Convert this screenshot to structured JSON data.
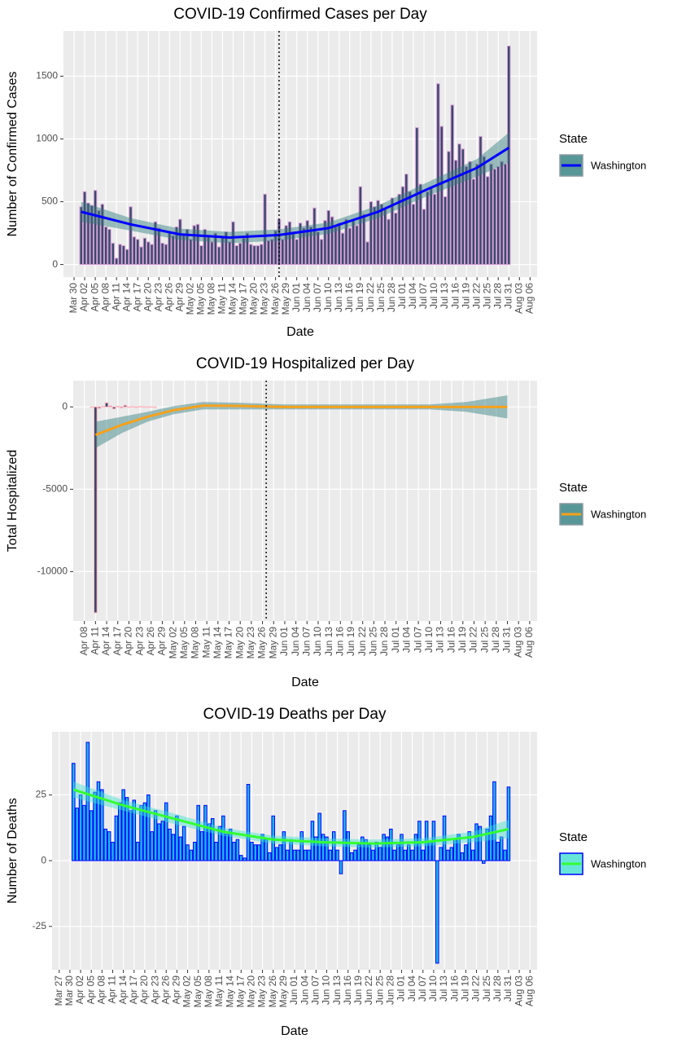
{
  "chart_data": [
    {
      "type": "bar",
      "title": "COVID-19 Confirmed Cases per Day",
      "x_label": "Date",
      "y_label": "Number of Confirmed Cases",
      "legend_title": "State",
      "x": [
        "Apr 01",
        "Apr 02",
        "Apr 03",
        "Apr 04",
        "Apr 05",
        "Apr 06",
        "Apr 07",
        "Apr 08",
        "Apr 09",
        "Apr 10",
        "Apr 11",
        "Apr 12",
        "Apr 13",
        "Apr 14",
        "Apr 15",
        "Apr 16",
        "Apr 17",
        "Apr 18",
        "Apr 19",
        "Apr 20",
        "Apr 21",
        "Apr 22",
        "Apr 23",
        "Apr 24",
        "Apr 25",
        "Apr 26",
        "Apr 27",
        "Apr 28",
        "Apr 29",
        "Apr 30",
        "May 01",
        "May 02",
        "May 03",
        "May 04",
        "May 05",
        "May 06",
        "May 07",
        "May 08",
        "May 09",
        "May 10",
        "May 11",
        "May 12",
        "May 13",
        "May 14",
        "May 15",
        "May 16",
        "May 17",
        "May 18",
        "May 19",
        "May 20",
        "May 21",
        "May 22",
        "May 23",
        "May 24",
        "May 25",
        "May 26",
        "May 27",
        "May 28",
        "May 29",
        "May 30",
        "May 31",
        "Jun 01",
        "Jun 02",
        "Jun 03",
        "Jun 04",
        "Jun 05",
        "Jun 06",
        "Jun 07",
        "Jun 08",
        "Jun 09",
        "Jun 10",
        "Jun 11",
        "Jun 12",
        "Jun 13",
        "Jun 14",
        "Jun 15",
        "Jun 16",
        "Jun 17",
        "Jun 18",
        "Jun 19",
        "Jun 20",
        "Jun 21",
        "Jun 22",
        "Jun 23",
        "Jun 24",
        "Jun 25",
        "Jun 26",
        "Jun 27",
        "Jun 28",
        "Jun 29",
        "Jun 30",
        "Jul 01",
        "Jul 02",
        "Jul 03",
        "Jul 04",
        "Jul 05",
        "Jul 06",
        "Jul 07",
        "Jul 08",
        "Jul 09",
        "Jul 10",
        "Jul 11",
        "Jul 12",
        "Jul 13",
        "Jul 14",
        "Jul 15",
        "Jul 16",
        "Jul 17",
        "Jul 18",
        "Jul 19",
        "Jul 20",
        "Jul 21",
        "Jul 22",
        "Jul 23",
        "Jul 24",
        "Jul 25",
        "Jul 26",
        "Jul 27",
        "Jul 28",
        "Jul 29",
        "Jul 30",
        "Jul 31"
      ],
      "series": [
        {
          "name": "Washington",
          "color": "#3b4a6b",
          "edge_color": "#d9a0d9",
          "values": [
            460,
            580,
            490,
            470,
            590,
            430,
            480,
            300,
            280,
            170,
            50,
            160,
            150,
            120,
            460,
            220,
            200,
            140,
            210,
            180,
            160,
            340,
            290,
            170,
            160,
            250,
            230,
            300,
            360,
            240,
            280,
            200,
            310,
            320,
            150,
            280,
            230,
            180,
            250,
            140,
            220,
            260,
            180,
            340,
            150,
            170,
            210,
            250,
            160,
            150,
            150,
            160,
            560,
            190,
            200,
            270,
            360,
            200,
            310,
            340,
            260,
            200,
            330,
            290,
            350,
            300,
            450,
            260,
            200,
            350,
            430,
            380,
            300,
            330,
            250,
            360,
            290,
            350,
            310,
            620,
            400,
            180,
            500,
            460,
            510,
            480,
            440,
            360,
            530,
            410,
            560,
            620,
            720,
            580,
            480,
            1090,
            640,
            440,
            580,
            620,
            560,
            1440,
            1100,
            540,
            900,
            1270,
            830,
            960,
            920,
            780,
            820,
            680,
            800,
            1020,
            860,
            700,
            800,
            760,
            780,
            820,
            800,
            1740
          ]
        }
      ],
      "trend": {
        "color": "#0000ff",
        "band_color": "#2e7d7d",
        "x": [
          "Apr 01",
          "Apr 15",
          "Apr 29",
          "May 13",
          "May 27",
          "Jun 10",
          "Jun 24",
          "Jul 08",
          "Jul 22",
          "Jul 31"
        ],
        "values": [
          420,
          320,
          240,
          215,
          235,
          290,
          420,
          600,
          770,
          930
        ],
        "lower": [
          340,
          270,
          195,
          170,
          190,
          245,
          370,
          545,
          700,
          810
        ],
        "upper": [
          500,
          370,
          285,
          260,
          280,
          335,
          470,
          655,
          840,
          1050
        ]
      },
      "vline": "May 27",
      "xlim": [
        "Mar 27",
        "Aug 08"
      ],
      "xticks": [
        "Mar 30",
        "Apr 02",
        "Apr 05",
        "Apr 08",
        "Apr 11",
        "Apr 14",
        "Apr 17",
        "Apr 20",
        "Apr 23",
        "Apr 26",
        "Apr 29",
        "May 02",
        "May 05",
        "May 08",
        "May 11",
        "May 14",
        "May 17",
        "May 20",
        "May 23",
        "May 26",
        "May 29",
        "Jun 01",
        "Jun 04",
        "Jun 07",
        "Jun 10",
        "Jun 13",
        "Jun 16",
        "Jun 19",
        "Jun 22",
        "Jun 25",
        "Jun 28",
        "Jul 01",
        "Jul 04",
        "Jul 07",
        "Jul 10",
        "Jul 13",
        "Jul 16",
        "Jul 19",
        "Jul 22",
        "Jul 25",
        "Jul 28",
        "Jul 31",
        "Aug 03",
        "Aug 06"
      ],
      "ylim": [
        -100,
        1860
      ],
      "yticks": [
        0,
        500,
        1000,
        1500
      ],
      "grid": true
    },
    {
      "type": "bar",
      "title": "COVID-19 Hospitalized per Day",
      "x_label": "Date",
      "y_label": "Total Hospitalized",
      "legend_title": "State",
      "x": [
        "Apr 10",
        "Apr 11",
        "Apr 12",
        "Apr 13",
        "Apr 14",
        "Apr 15",
        "Apr 16",
        "Apr 17",
        "Apr 18",
        "Apr 19",
        "Apr 20",
        "Apr 21",
        "Apr 22",
        "Apr 23",
        "Apr 24",
        "Apr 25",
        "Apr 26",
        "Apr 27"
      ],
      "series": [
        {
          "name": "Washington",
          "color": "#3b4a6b",
          "edge_color": "#ffb6c1",
          "values": [
            0,
            -12500,
            -80,
            30,
            250,
            60,
            -120,
            40,
            -60,
            100,
            -30,
            20,
            -40,
            30,
            10,
            -20,
            10,
            0
          ]
        }
      ],
      "trend": {
        "color": "#f5a11c",
        "band_color": "#2e7d7d",
        "x": [
          "Apr 11",
          "Apr 18",
          "Apr 25",
          "May 02",
          "May 10",
          "May 20",
          "Jun 01",
          "Jun 20",
          "Jul 10",
          "Jul 20",
          "Jul 31"
        ],
        "values": [
          -1700,
          -1100,
          -600,
          -200,
          80,
          60,
          0,
          0,
          0,
          0,
          0
        ],
        "lower": [
          -2500,
          -1600,
          -900,
          -450,
          -150,
          -150,
          -150,
          -150,
          -150,
          -300,
          -700
        ],
        "upper": [
          -900,
          -600,
          -300,
          50,
          300,
          250,
          150,
          150,
          150,
          300,
          700
        ]
      },
      "vline": "May 27",
      "xlim": [
        "Apr 05",
        "Aug 08"
      ],
      "xticks": [
        "Apr 08",
        "Apr 11",
        "Apr 14",
        "Apr 17",
        "Apr 20",
        "Apr 23",
        "Apr 26",
        "Apr 29",
        "May 02",
        "May 05",
        "May 08",
        "May 11",
        "May 14",
        "May 17",
        "May 20",
        "May 23",
        "May 26",
        "May 29",
        "Jun 01",
        "Jun 04",
        "Jun 07",
        "Jun 10",
        "Jun 13",
        "Jun 16",
        "Jun 19",
        "Jun 22",
        "Jun 25",
        "Jun 28",
        "Jul 01",
        "Jul 04",
        "Jul 07",
        "Jul 10",
        "Jul 13",
        "Jul 16",
        "Jul 19",
        "Jul 22",
        "Jul 25",
        "Jul 28",
        "Jul 31",
        "Aug 03",
        "Aug 06"
      ],
      "ylim": [
        -13000,
        1600
      ],
      "yticks": [
        -10000,
        -5000,
        0
      ],
      "grid": true
    },
    {
      "type": "bar",
      "title": "COVID-19 Deaths per Day",
      "x_label": "Date",
      "y_label": "Number of Deaths",
      "legend_title": "State",
      "x": [
        "Mar 31",
        "Apr 01",
        "Apr 02",
        "Apr 03",
        "Apr 04",
        "Apr 05",
        "Apr 06",
        "Apr 07",
        "Apr 08",
        "Apr 09",
        "Apr 10",
        "Apr 11",
        "Apr 12",
        "Apr 13",
        "Apr 14",
        "Apr 15",
        "Apr 16",
        "Apr 17",
        "Apr 18",
        "Apr 19",
        "Apr 20",
        "Apr 21",
        "Apr 22",
        "Apr 23",
        "Apr 24",
        "Apr 25",
        "Apr 26",
        "Apr 27",
        "Apr 28",
        "Apr 29",
        "Apr 30",
        "May 01",
        "May 02",
        "May 03",
        "May 04",
        "May 05",
        "May 06",
        "May 07",
        "May 08",
        "May 09",
        "May 10",
        "May 11",
        "May 12",
        "May 13",
        "May 14",
        "May 15",
        "May 16",
        "May 17",
        "May 18",
        "May 19",
        "May 20",
        "May 21",
        "May 22",
        "May 23",
        "May 24",
        "May 25",
        "May 26",
        "May 27",
        "May 28",
        "May 29",
        "May 30",
        "May 31",
        "Jun 01",
        "Jun 02",
        "Jun 03",
        "Jun 04",
        "Jun 05",
        "Jun 06",
        "Jun 07",
        "Jun 08",
        "Jun 09",
        "Jun 10",
        "Jun 11",
        "Jun 12",
        "Jun 13",
        "Jun 14",
        "Jun 15",
        "Jun 16",
        "Jun 17",
        "Jun 18",
        "Jun 19",
        "Jun 20",
        "Jun 21",
        "Jun 22",
        "Jun 23",
        "Jun 24",
        "Jun 25",
        "Jun 26",
        "Jun 27",
        "Jun 28",
        "Jun 29",
        "Jun 30",
        "Jul 01",
        "Jul 02",
        "Jul 03",
        "Jul 04",
        "Jul 05",
        "Jul 06",
        "Jul 07",
        "Jul 08",
        "Jul 09",
        "Jul 10",
        "Jul 11",
        "Jul 12",
        "Jul 13",
        "Jul 14",
        "Jul 15",
        "Jul 16",
        "Jul 17",
        "Jul 18",
        "Jul 19",
        "Jul 20",
        "Jul 21",
        "Jul 22",
        "Jul 23",
        "Jul 24",
        "Jul 25",
        "Jul 26",
        "Jul 27",
        "Jul 28",
        "Jul 29",
        "Jul 30",
        "Jul 31"
      ],
      "series": [
        {
          "name": "Washington",
          "color": "#1eb4f0",
          "edge_color": "#0000ff",
          "values": [
            37,
            20,
            25,
            21,
            45,
            19,
            26,
            30,
            27,
            12,
            11,
            7,
            17,
            22,
            27,
            24,
            19,
            23,
            7,
            21,
            22,
            25,
            11,
            19,
            14,
            15,
            22,
            12,
            10,
            17,
            9,
            13,
            6,
            4,
            7,
            21,
            11,
            21,
            14,
            16,
            7,
            13,
            17,
            10,
            12,
            7,
            8,
            2,
            1,
            29,
            7,
            6,
            6,
            10,
            8,
            3,
            17,
            5,
            6,
            11,
            4,
            8,
            4,
            4,
            11,
            4,
            4,
            15,
            9,
            18,
            10,
            9,
            4,
            11,
            4,
            -5,
            19,
            11,
            3,
            4,
            6,
            9,
            8,
            6,
            4,
            7,
            5,
            10,
            9,
            12,
            4,
            6,
            10,
            4,
            6,
            4,
            10,
            15,
            4,
            15,
            7,
            15,
            -39,
            5,
            17,
            4,
            5,
            8,
            10,
            3,
            6,
            11,
            4,
            14,
            13,
            -1,
            12,
            17,
            30,
            7,
            9,
            4,
            28
          ]
        }
      ],
      "trend": {
        "color": "#33ff33",
        "band_color": "#40e0d0",
        "x": [
          "Mar 31",
          "Apr 14",
          "Apr 28",
          "May 12",
          "May 26",
          "Jun 09",
          "Jun 23",
          "Jul 07",
          "Jul 21",
          "Jul 31"
        ],
        "values": [
          27,
          21,
          16,
          11,
          8,
          7,
          6.5,
          7,
          9,
          12
        ],
        "lower": [
          24,
          19,
          14,
          9.5,
          6.5,
          5.5,
          5,
          5.5,
          7,
          8.5
        ],
        "upper": [
          30,
          23,
          18,
          12.5,
          9.5,
          8.5,
          8,
          8.5,
          11,
          15.5
        ]
      },
      "xlim": [
        "Mar 25",
        "Aug 08"
      ],
      "xticks": [
        "Mar 27",
        "Mar 30",
        "Apr 02",
        "Apr 05",
        "Apr 08",
        "Apr 11",
        "Apr 14",
        "Apr 17",
        "Apr 20",
        "Apr 23",
        "Apr 26",
        "Apr 29",
        "May 02",
        "May 05",
        "May 08",
        "May 11",
        "May 14",
        "May 17",
        "May 20",
        "May 23",
        "May 26",
        "May 29",
        "Jun 01",
        "Jun 04",
        "Jun 07",
        "Jun 10",
        "Jun 13",
        "Jun 16",
        "Jun 19",
        "Jun 22",
        "Jun 25",
        "Jun 28",
        "Jul 01",
        "Jul 04",
        "Jul 07",
        "Jul 10",
        "Jul 13",
        "Jul 16",
        "Jul 19",
        "Jul 22",
        "Jul 25",
        "Jul 28",
        "Jul 31",
        "Aug 03",
        "Aug 06"
      ],
      "ylim": [
        -41.5,
        49
      ],
      "yticks": [
        -25,
        0,
        25
      ],
      "grid": true
    }
  ]
}
